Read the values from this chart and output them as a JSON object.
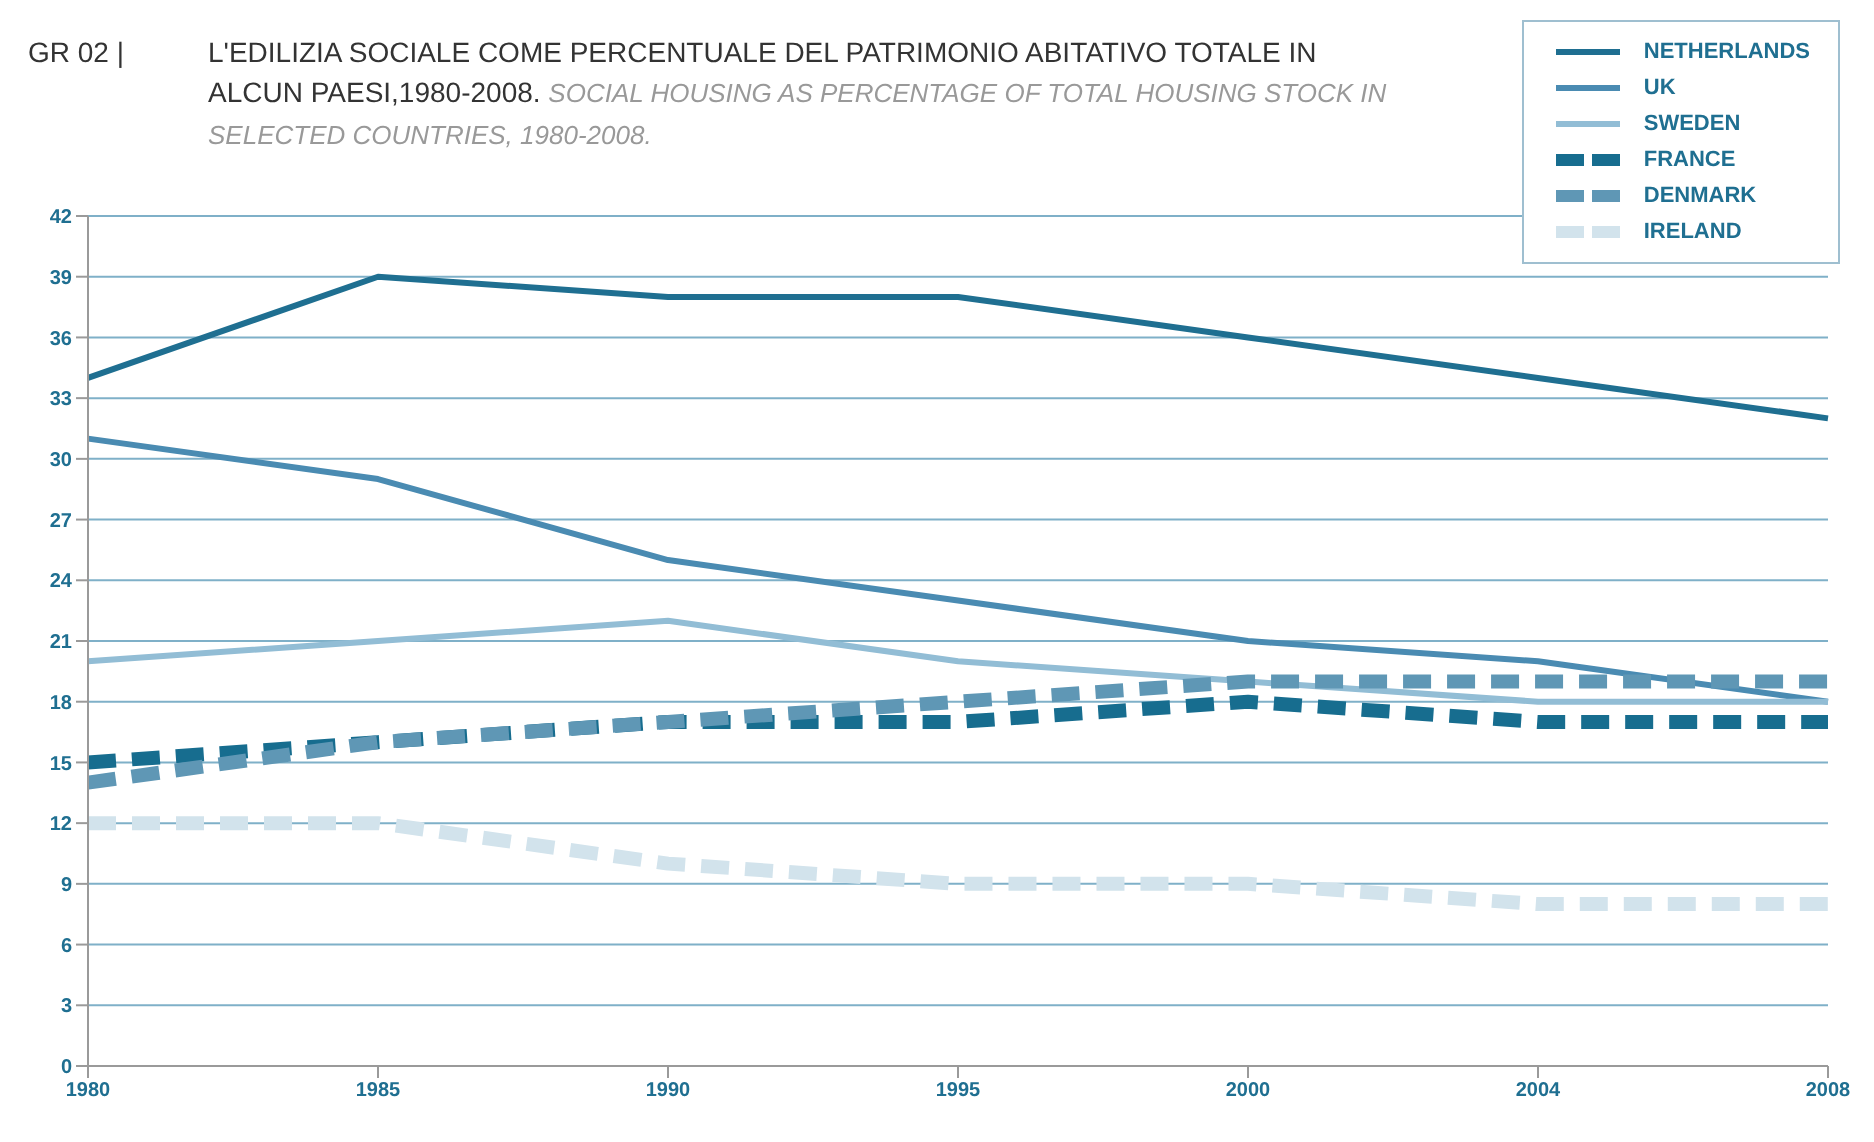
{
  "chart_data": {
    "type": "line",
    "title": "L'EDILIZIA SOCIALE COME PERCENTUALE DEL PATRIMONIO ABITATIVO TOTALE IN ALCUN PAESI,1980-2008.",
    "subtitle": "SOCIAL HOUSING AS PERCENTAGE OF TOTAL HOUSING STOCK IN SELECTED  COUNTRIES, 1980-2008.",
    "annotations": [
      "GR 02 |"
    ],
    "categories": [
      "1980",
      "1985",
      "1990",
      "1995",
      "2000",
      "2004",
      "2008"
    ],
    "series": [
      {
        "name": "NETHERLANDS",
        "color": "#1f6f91",
        "line_style": "solid",
        "values": [
          34,
          39,
          38,
          38,
          36,
          34,
          32
        ]
      },
      {
        "name": "UK",
        "color": "#4a8bb2",
        "line_style": "solid",
        "values": [
          31,
          29,
          25,
          23,
          21,
          20,
          18
        ]
      },
      {
        "name": "SWEDEN",
        "color": "#92bdd5",
        "line_style": "solid",
        "values": [
          20,
          21,
          22,
          20,
          19,
          18,
          18
        ]
      },
      {
        "name": "FRANCE",
        "color": "#176d8f",
        "line_style": "dashed",
        "values": [
          15,
          16,
          17,
          17,
          18,
          17,
          17
        ]
      },
      {
        "name": "DENMARK",
        "color": "#5f97b5",
        "line_style": "dashed",
        "values": [
          14,
          16,
          17,
          18,
          19,
          19,
          19
        ]
      },
      {
        "name": "IRELAND",
        "color": "#d2e3ec",
        "line_style": "dashed",
        "values": [
          12,
          12,
          10,
          9,
          9,
          8,
          8
        ]
      }
    ],
    "ylim": [
      0,
      42
    ],
    "yticks": [
      0,
      3,
      6,
      9,
      12,
      15,
      18,
      21,
      24,
      27,
      30,
      33,
      36,
      39,
      42
    ],
    "grid": "y",
    "legend": "top right",
    "marker": "none"
  }
}
